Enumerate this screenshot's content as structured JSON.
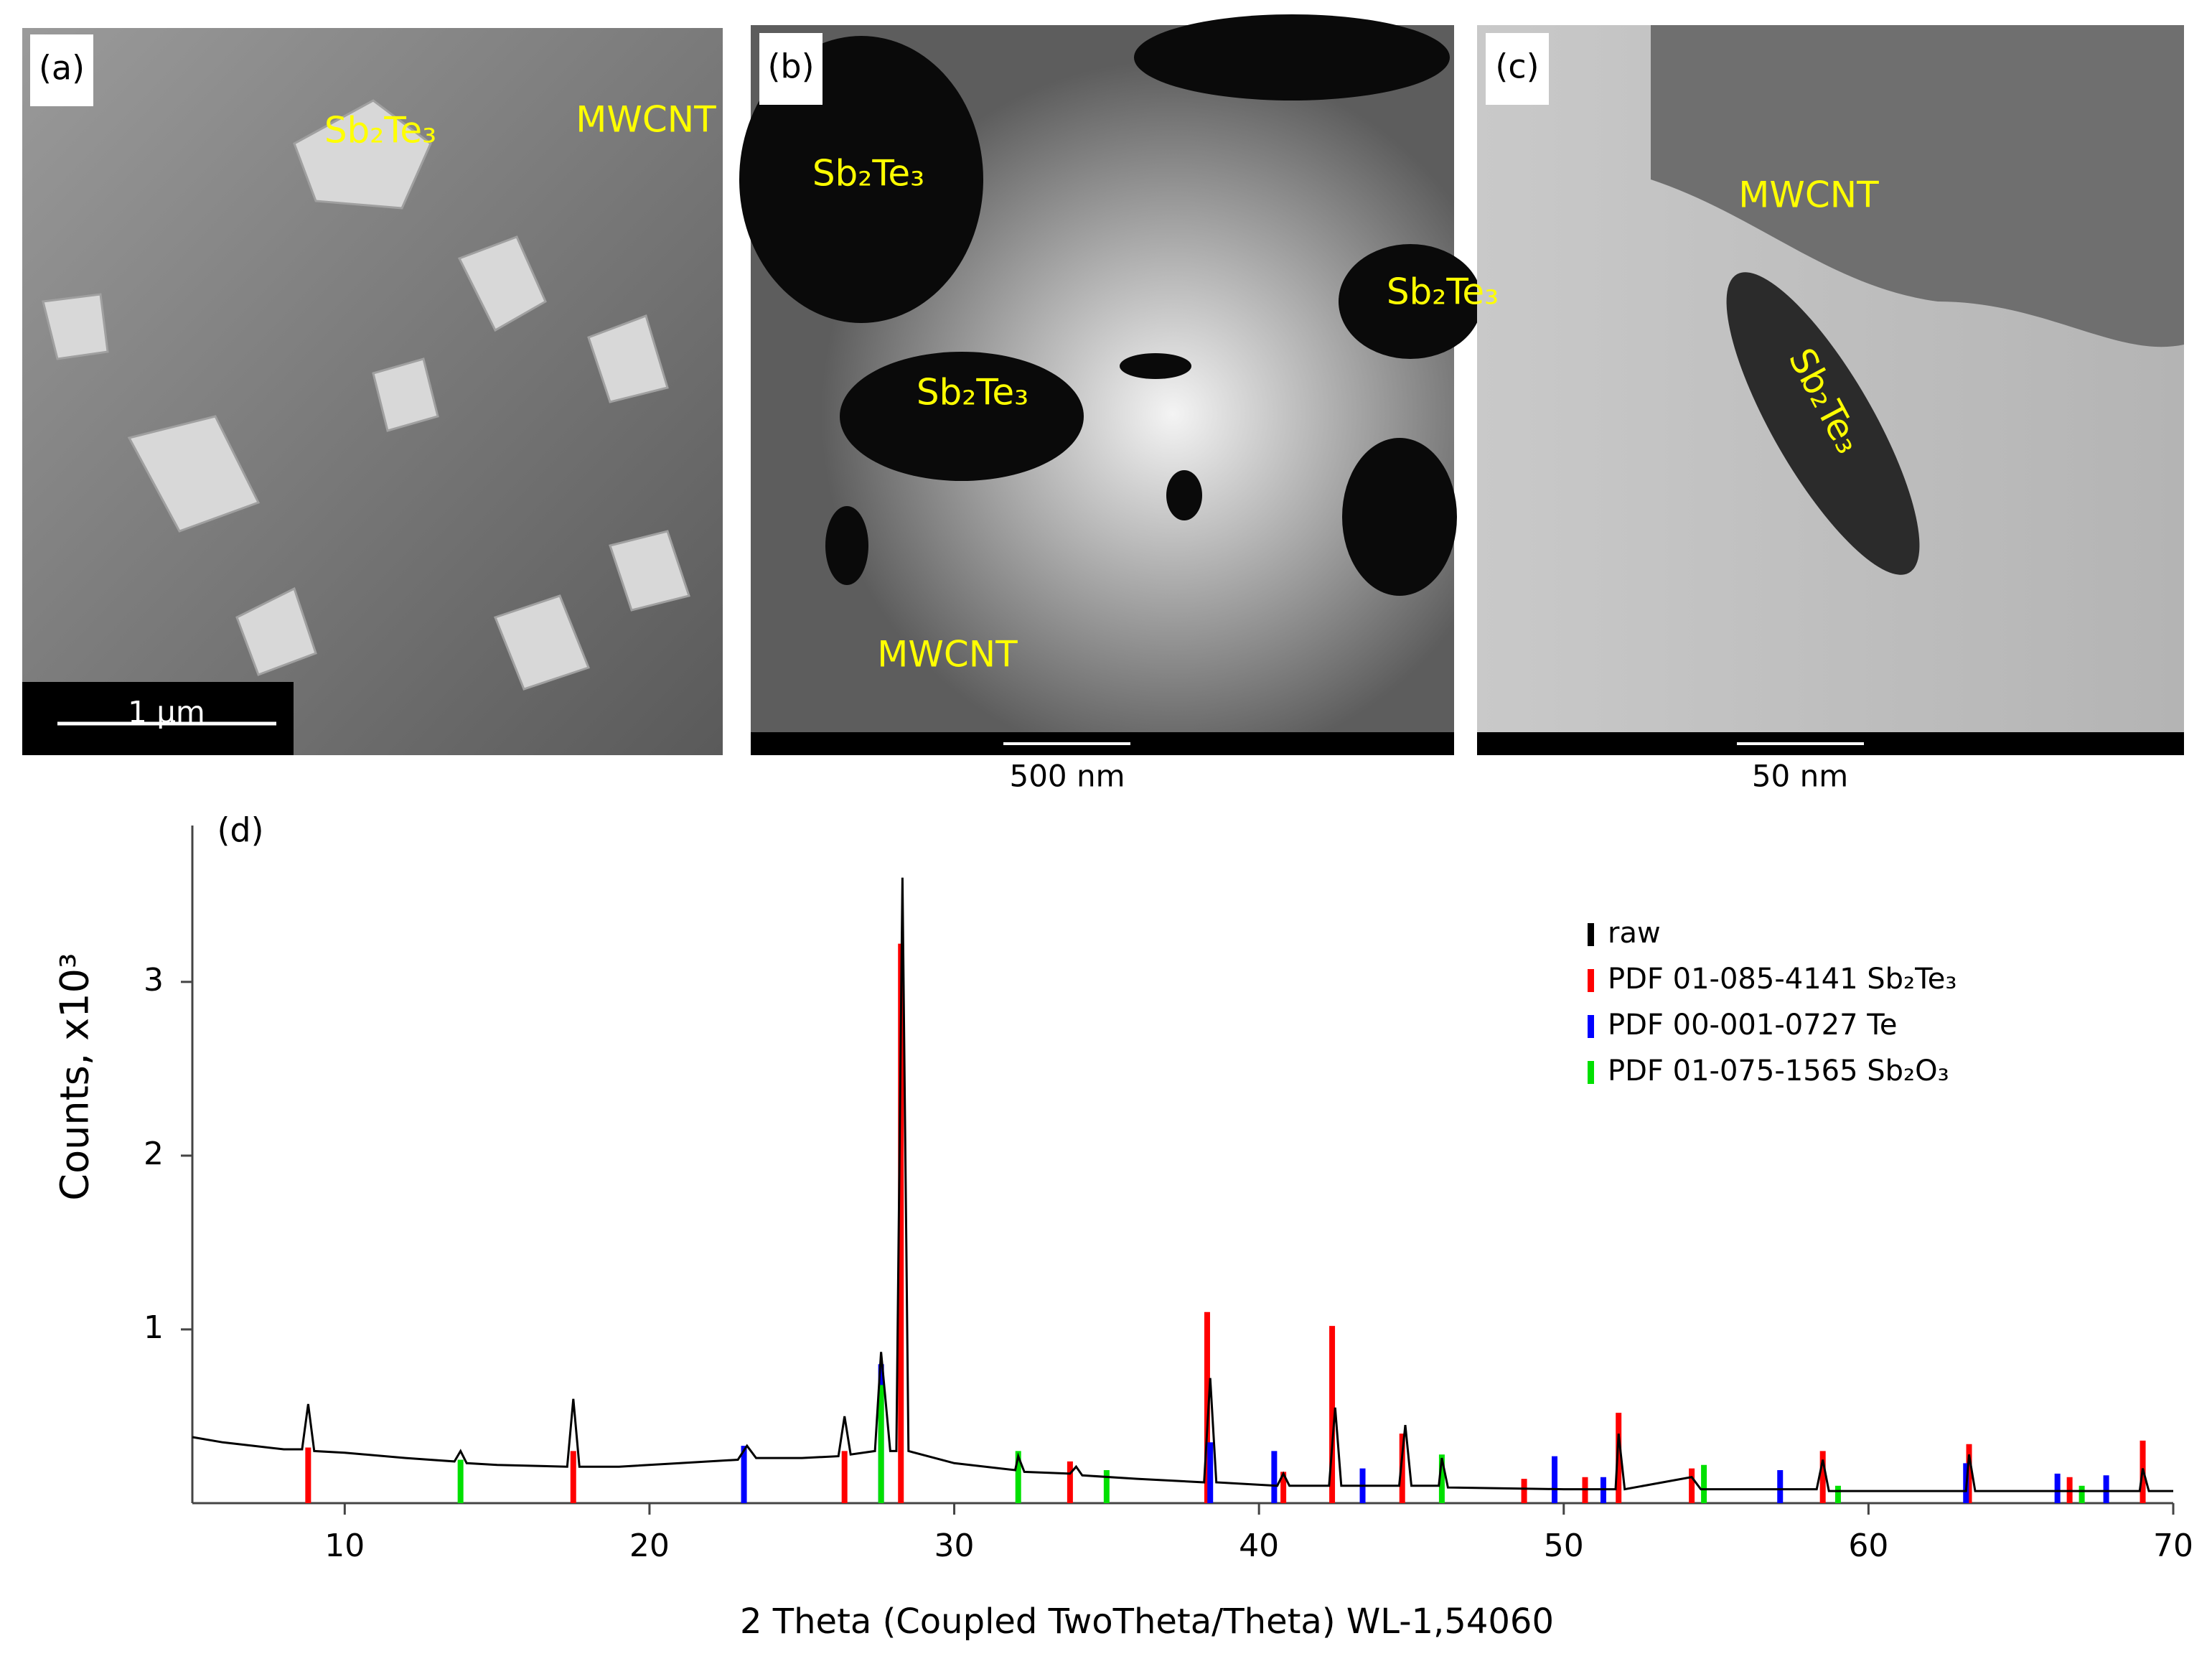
{
  "panels": [
    {
      "label": "(a)",
      "annotations": [
        "Sb₂Te₃",
        "MWCNT"
      ],
      "scale_bar": "1 μm"
    },
    {
      "label": "(b)",
      "annotations": [
        "Sb₂Te₃",
        "Sb₂Te₃",
        "Sb₂Te₃",
        "MWCNT"
      ],
      "scale_bar": "500 nm"
    },
    {
      "label": "(c)",
      "annotations": [
        "MWCNT",
        "Sb₂Te₃"
      ],
      "scale_bar": "50 nm"
    }
  ],
  "chart_data": {
    "type": "line",
    "panel_label": "(d)",
    "x_label": "2 Theta (Coupled TwoTheta/Theta) WL-1,54060",
    "y_label": "Counts, x10³",
    "xlim": [
      5,
      70
    ],
    "xticks": [
      10,
      20,
      30,
      40,
      50,
      60,
      70
    ],
    "ylim": [
      0,
      3.9
    ],
    "yticks": [
      1,
      2,
      3
    ],
    "series": [
      {
        "name": "raw",
        "color": "#000000",
        "style": "line",
        "x": [
          5,
          6,
          7,
          8,
          8.6,
          8.8,
          9.0,
          10,
          12,
          13.6,
          13.8,
          14.0,
          15,
          17.3,
          17.5,
          17.7,
          19,
          21,
          22.9,
          23.2,
          23.5,
          25,
          26.2,
          26.4,
          26.6,
          27.4,
          27.6,
          27.9,
          28.1,
          28.3,
          28.5,
          30,
          32,
          32.1,
          32.3,
          33.8,
          34,
          34.2,
          36,
          38.2,
          38.4,
          38.6,
          40.6,
          40.8,
          41,
          42.3,
          42.5,
          42.7,
          44.6,
          44.8,
          45,
          45.9,
          46.0,
          46.2,
          50,
          51.7,
          51.8,
          52,
          54.2,
          54.5,
          58.3,
          58.5,
          58.7,
          63.2,
          63.3,
          63.5,
          68.9,
          69.0,
          69.2,
          70
        ],
        "values": [
          0.38,
          0.35,
          0.33,
          0.31,
          0.31,
          0.57,
          0.3,
          0.29,
          0.26,
          0.24,
          0.3,
          0.23,
          0.22,
          0.21,
          0.6,
          0.21,
          0.21,
          0.23,
          0.25,
          0.33,
          0.26,
          0.26,
          0.27,
          0.5,
          0.28,
          0.3,
          0.87,
          0.3,
          0.3,
          3.6,
          0.3,
          0.23,
          0.19,
          0.27,
          0.18,
          0.17,
          0.21,
          0.16,
          0.14,
          0.12,
          0.72,
          0.12,
          0.1,
          0.17,
          0.1,
          0.1,
          0.55,
          0.1,
          0.1,
          0.45,
          0.1,
          0.1,
          0.26,
          0.09,
          0.08,
          0.08,
          0.4,
          0.08,
          0.15,
          0.08,
          0.08,
          0.25,
          0.07,
          0.07,
          0.28,
          0.07,
          0.07,
          0.2,
          0.07,
          0.07
        ]
      },
      {
        "name": "PDF 01-085-4141 Sb₂Te₃",
        "color": "#ff0000",
        "style": "stick",
        "x": [
          8.8,
          17.5,
          26.4,
          28.25,
          33.8,
          38.3,
          40.8,
          42.4,
          44.7,
          48.7,
          50.7,
          51.8,
          54.2,
          58.5,
          63.3,
          66.6,
          69.0
        ],
        "values": [
          0.32,
          0.3,
          0.3,
          3.22,
          0.24,
          1.1,
          0.18,
          1.02,
          0.4,
          0.14,
          0.15,
          0.52,
          0.2,
          0.3,
          0.34,
          0.15,
          0.36
        ]
      },
      {
        "name": "PDF 00-001-0727 Te",
        "color": "#0000ff",
        "style": "stick",
        "x": [
          23.1,
          27.6,
          38.4,
          40.5,
          43.4,
          49.7,
          51.3,
          57.1,
          63.2,
          66.2,
          67.8
        ],
        "values": [
          0.33,
          0.8,
          0.35,
          0.3,
          0.2,
          0.27,
          0.15,
          0.19,
          0.23,
          0.17,
          0.16
        ]
      },
      {
        "name": "PDF 01-075-1565 Sb₂O₃",
        "color": "#00e000",
        "style": "stick",
        "x": [
          13.8,
          27.6,
          32.1,
          35.0,
          46.0,
          54.6,
          59.0,
          67.0
        ],
        "values": [
          0.25,
          0.68,
          0.3,
          0.19,
          0.28,
          0.22,
          0.1,
          0.1
        ]
      }
    ]
  }
}
